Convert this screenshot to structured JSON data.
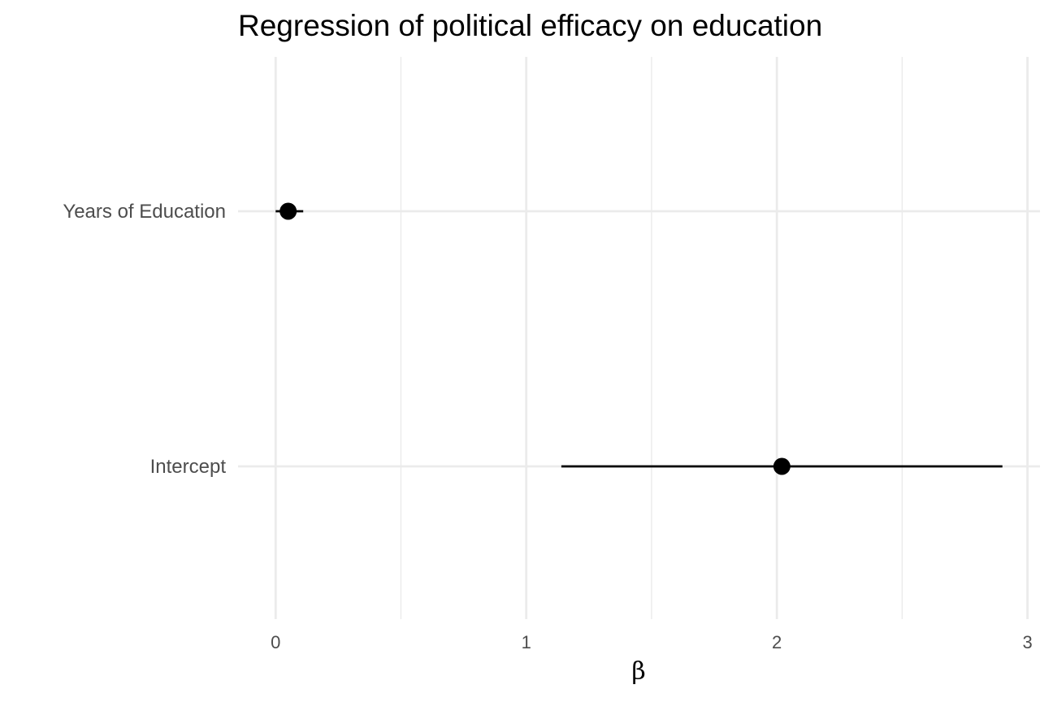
{
  "chart_data": {
    "type": "scatter",
    "subtype": "coefficient-plot",
    "title": "Regression of political efficacy on education",
    "xlabel": "β",
    "ylabel": "",
    "xlim": [
      -0.15,
      3.05
    ],
    "x_ticks": [
      0,
      1,
      2,
      3
    ],
    "x_tick_labels": [
      "0",
      "1",
      "2",
      "3"
    ],
    "x_minor_ticks": [
      0.5,
      1.5,
      2.5
    ],
    "categories": [
      "Years of Education",
      "Intercept"
    ],
    "series": [
      {
        "points": [
          {
            "term": "Years of Education",
            "estimate": 0.05,
            "low": 0.0,
            "high": 0.11
          },
          {
            "term": "Intercept",
            "estimate": 2.02,
            "low": 1.14,
            "high": 2.9
          }
        ]
      }
    ],
    "grid": true,
    "legend": "none",
    "colors": {
      "point": "#000000",
      "grid": "#ebebeb",
      "tick_text": "#4d4d4d",
      "background": "#ffffff"
    }
  }
}
